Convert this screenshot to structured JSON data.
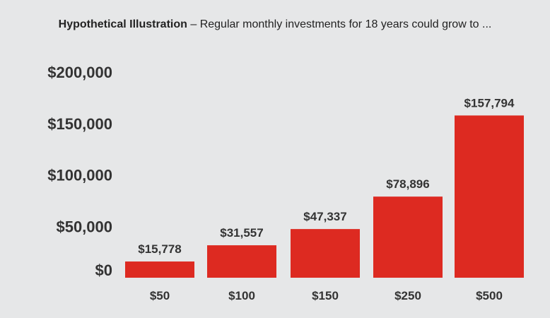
{
  "chart_data": {
    "type": "bar",
    "title_bold": "Hypothetical Illustration",
    "title_rest": " – Regular monthly investments for 18 years could grow to ...",
    "categories": [
      "$50",
      "$100",
      "$150",
      "$250",
      "$500"
    ],
    "values": [
      15778,
      31557,
      47337,
      78896,
      157794
    ],
    "data_labels": [
      "$15,778",
      "$31,557",
      "$47,337",
      "$78,896",
      "$157,794"
    ],
    "yticks": [
      0,
      50000,
      100000,
      150000,
      200000
    ],
    "ytick_labels": [
      "$0",
      "$50,000",
      "$100,000",
      "$150,000",
      "$200,000"
    ],
    "ylim": [
      0,
      200000
    ],
    "xlabel": "",
    "ylabel": "",
    "grid": false,
    "legend": "none",
    "bar_color": "#dd2a21",
    "background_color": "#e6e7e8"
  }
}
